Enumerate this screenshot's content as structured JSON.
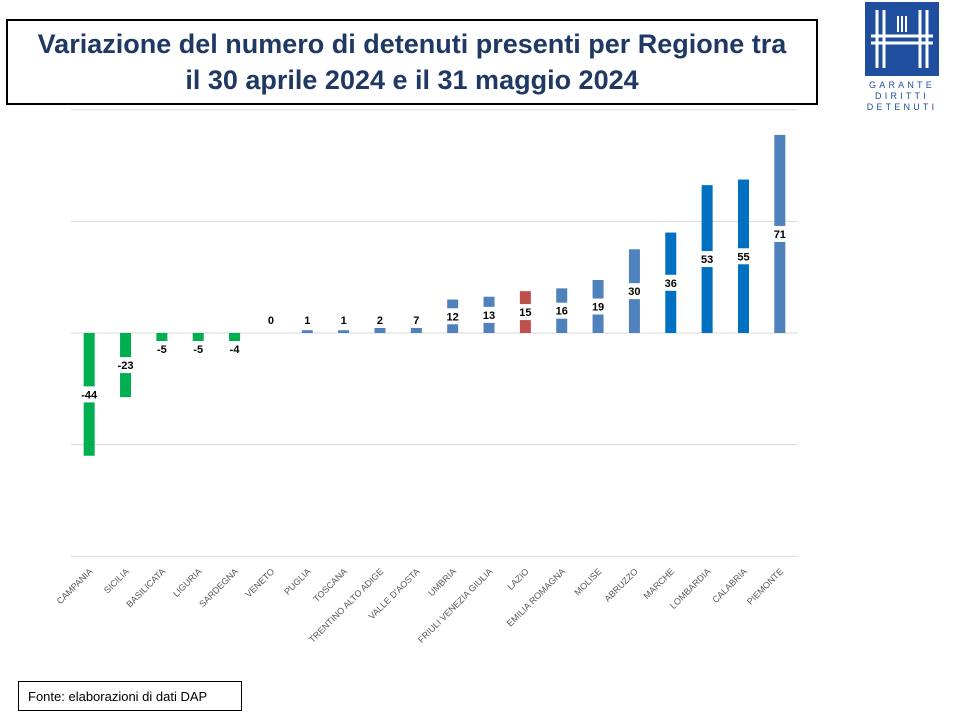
{
  "title": {
    "line1": "Variazione del numero di detenuti presenti per Regione tra",
    "line2": "il 30 aprile 2024 e il 31 maggio 2024"
  },
  "logo": {
    "line1": "GARANTE",
    "line2": "DIRITTI",
    "line3": "DETENUTI",
    "color": "#1f4e9e"
  },
  "source": "Fonte: elaborazioni di dati DAP",
  "chart_data": {
    "type": "bar",
    "title": "",
    "xlabel": "",
    "ylabel": "",
    "ylim": [
      -80,
      80
    ],
    "grid": true,
    "categories": [
      "CAMPANIA",
      "SICILIA",
      "BASILICATA",
      "LIGURIA",
      "SARDEGNA",
      "VENETO",
      "PUGLIA",
      "TOSCANA",
      "TRENTINO ALTO ADIGE",
      "VALLE D'AOSTA",
      "UMBRIA",
      "FRIULI VENEZIA GIULIA",
      "LAZIO",
      "EMILIA ROMAGNA",
      "MOLISE",
      "ABRUZZO",
      "MARCHE",
      "LOMBARDIA",
      "CALABRIA",
      "PIEMONTE"
    ],
    "values": [
      -44,
      -23,
      -5,
      -5,
      -4,
      0,
      1,
      1,
      2,
      7,
      12,
      13,
      15,
      16,
      19,
      30,
      36,
      53,
      55,
      71
    ],
    "labels": [
      "-44",
      "-23",
      "-5",
      "-5",
      "-4",
      "0",
      "1",
      "1",
      "2",
      "7",
      "12",
      "13",
      "15",
      "16",
      "19",
      "30",
      "36",
      "53",
      "55",
      "71"
    ],
    "colors": [
      "#00b050",
      "#00b050",
      "#00b050",
      "#00b050",
      "#00b050",
      "#4f81bd",
      "#4f81bd",
      "#4f81bd",
      "#4f81bd",
      "#4f81bd",
      "#4f81bd",
      "#4f81bd",
      "#c0504d",
      "#4f81bd",
      "#4f81bd",
      "#4f81bd",
      "#0070c0",
      "#0070c0",
      "#0070c0",
      "#4f81bd"
    ]
  }
}
